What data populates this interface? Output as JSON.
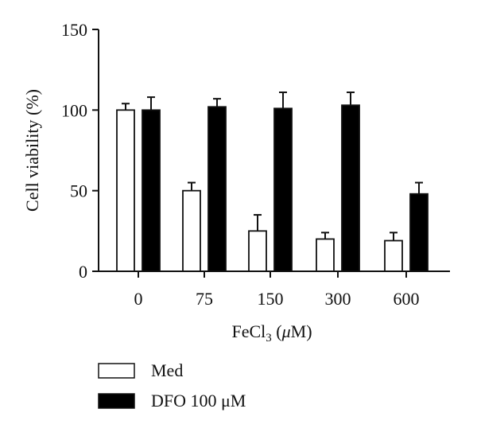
{
  "chart_data": {
    "type": "bar",
    "xlabel_prefix": "FeCl",
    "xlabel_sub": "3",
    "xlabel_suffix": " (",
    "xlabel_mu": "μ",
    "xlabel_unit": "M)",
    "ylabel": "Cell viability (%)",
    "ylim": [
      0,
      150
    ],
    "yticks": [
      "0",
      "50",
      "100",
      "150"
    ],
    "ytick_values": [
      0,
      50,
      100,
      150
    ],
    "categories": [
      "0",
      "75",
      "150",
      "300",
      "600"
    ],
    "series": [
      {
        "name": "Med",
        "color": "#ffffff",
        "values": [
          100,
          50,
          25,
          20,
          19
        ],
        "errors": [
          4,
          5,
          10,
          4,
          5
        ]
      },
      {
        "name": "DFO 100 μM",
        "color": "#000000",
        "values": [
          100,
          102,
          101,
          103,
          48
        ],
        "errors": [
          8,
          5,
          10,
          8,
          7
        ]
      }
    ],
    "legend_placement": "bottom-left",
    "grid": false
  }
}
